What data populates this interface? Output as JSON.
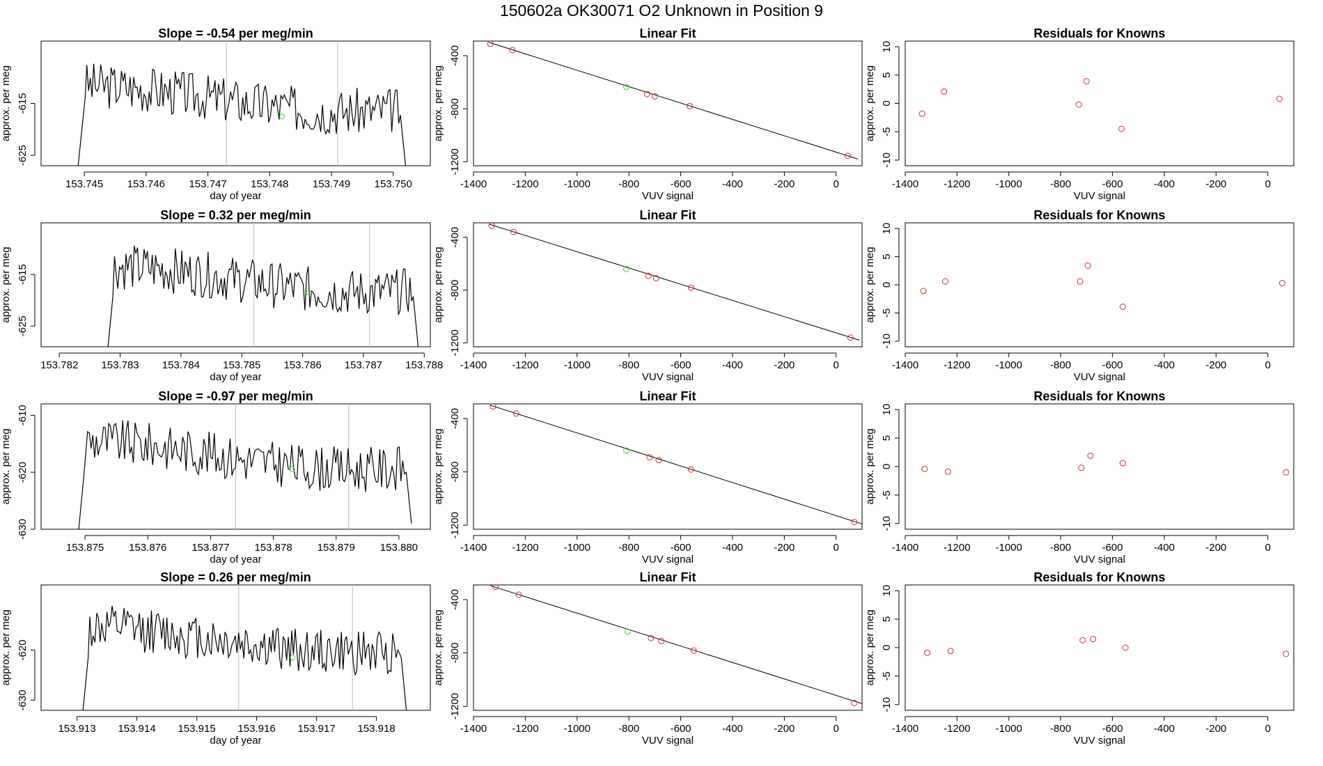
{
  "header": {
    "title": "150602a      OK30071    O2 Unknown in Position  9"
  },
  "colors": {
    "line": "#000000",
    "known_point": "#cd3333",
    "unknown_point": "#33dd33",
    "divider": "#bbbbbb"
  },
  "chart_data": [
    {
      "type": "line",
      "title": "Slope =  -0.54  per meg/min",
      "xlabel": "day of year",
      "ylabel": "approx. per meg",
      "xlim": [
        153.7443,
        153.7506
      ],
      "ylim": [
        -627,
        -603
      ],
      "x_ticks": [
        153.745,
        153.746,
        153.747,
        153.748,
        153.749,
        153.75
      ],
      "x_tick_labels": [
        "153.745",
        "153.746",
        "153.747",
        "153.748",
        "153.749",
        "153.750"
      ],
      "y_ticks": [
        -625,
        -615
      ],
      "y_tick_labels": [
        "-625",
        "-615"
      ],
      "x_start": 153.7449,
      "x_end": 153.7502,
      "n_points": 190,
      "y_mean": -614,
      "y_amplitude": 4.5,
      "y_start": -627,
      "y_end": -627,
      "vlines": [
        153.7473,
        153.7491
      ],
      "marker": {
        "x": 153.7482,
        "y": -617.5
      }
    },
    {
      "type": "scatter",
      "title": "Linear Fit",
      "xlabel": "VUV signal",
      "ylabel": "approx. per meg",
      "xlim": [
        -1400,
        100
      ],
      "ylim": [
        -1230,
        -290
      ],
      "x_ticks": [
        -1400,
        -1200,
        -1000,
        -800,
        -600,
        -400,
        -200,
        0
      ],
      "x_tick_labels": [
        "-1400",
        "-1200",
        "-1000",
        "-800",
        "-600",
        "-400",
        "-200",
        "0"
      ],
      "y_ticks": [
        -400,
        -800,
        -1200
      ],
      "y_tick_labels": [
        "-400",
        "-800",
        "-1200"
      ],
      "fit_line": {
        "x": [
          -1340,
          85
        ],
        "y": [
          -300,
          -1180
        ]
      },
      "known_points": {
        "x": [
          -1335,
          -1250,
          -730,
          -700,
          -565,
          45
        ],
        "y": [
          -310,
          -358,
          -689,
          -707,
          -780,
          -1155
        ]
      },
      "unknown_point": {
        "x": -810,
        "y": -635
      }
    },
    {
      "type": "scatter",
      "title": "Residuals for Knowns",
      "xlabel": "VUV signal",
      "ylabel": "approx. per meg",
      "xlim": [
        -1400,
        100
      ],
      "ylim": [
        -11,
        11
      ],
      "x_ticks": [
        -1400,
        -1200,
        -1000,
        -800,
        -600,
        -400,
        -200,
        0
      ],
      "x_tick_labels": [
        "-1400",
        "-1200",
        "-1000",
        "-800",
        "-600",
        "-400",
        "-200",
        "0"
      ],
      "y_ticks": [
        10,
        5,
        0,
        -5,
        -10
      ],
      "y_tick_labels": [
        "10",
        "5",
        "0",
        "-5",
        "-10"
      ],
      "points": {
        "x": [
          -1335,
          -1250,
          -730,
          -700,
          -565,
          45
        ],
        "y": [
          -1.8,
          2.1,
          -0.2,
          3.9,
          -4.5,
          0.8
        ]
      }
    },
    {
      "type": "line",
      "title": "Slope =  0.32  per meg/min",
      "xlabel": "day of year",
      "ylabel": "approx. per meg",
      "xlim": [
        153.7817,
        153.7881
      ],
      "ylim": [
        -629,
        -605
      ],
      "x_ticks": [
        153.782,
        153.783,
        153.784,
        153.785,
        153.786,
        153.787,
        153.788
      ],
      "x_tick_labels": [
        "153.782",
        "153.783",
        "153.784",
        "153.785",
        "153.786",
        "153.787",
        "153.788"
      ],
      "y_ticks": [
        -625,
        -615
      ],
      "y_tick_labels": [
        "-625",
        "-615"
      ],
      "x_start": 153.7828,
      "x_end": 153.7879,
      "n_points": 190,
      "y_mean": -616,
      "y_amplitude": 4.5,
      "y_start": -629,
      "y_end": -629,
      "vlines": [
        153.7852,
        153.7871
      ],
      "marker": {
        "x": 153.7861,
        "y": -618.5
      }
    },
    {
      "type": "scatter",
      "title": "Linear Fit",
      "xlabel": "VUV signal",
      "ylabel": "approx. per meg",
      "xlim": [
        -1400,
        100
      ],
      "ylim": [
        -1230,
        -290
      ],
      "x_ticks": [
        -1400,
        -1200,
        -1000,
        -800,
        -600,
        -400,
        -200,
        0
      ],
      "x_tick_labels": [
        "-1400",
        "-1200",
        "-1000",
        "-800",
        "-600",
        "-400",
        "-200",
        "0"
      ],
      "y_ticks": [
        -400,
        -800,
        -1200
      ],
      "y_tick_labels": [
        "-400",
        "-800",
        "-1200"
      ],
      "fit_line": {
        "x": [
          -1340,
          90
        ],
        "y": [
          -300,
          -1180
        ]
      },
      "known_points": {
        "x": [
          -1330,
          -1245,
          -725,
          -695,
          -560,
          55
        ],
        "y": [
          -312,
          -360,
          -692,
          -710,
          -782,
          -1160
        ]
      },
      "unknown_point": {
        "x": -810,
        "y": -640
      }
    },
    {
      "type": "scatter",
      "title": "Residuals for Knowns",
      "xlabel": "VUV signal",
      "ylabel": "approx. per meg",
      "xlim": [
        -1400,
        100
      ],
      "ylim": [
        -11,
        11
      ],
      "x_ticks": [
        -1400,
        -1200,
        -1000,
        -800,
        -600,
        -400,
        -200,
        0
      ],
      "x_tick_labels": [
        "-1400",
        "-1200",
        "-1000",
        "-800",
        "-600",
        "-400",
        "-200",
        "0"
      ],
      "y_ticks": [
        10,
        5,
        0,
        -5,
        -10
      ],
      "y_tick_labels": [
        "10",
        "5",
        "0",
        "-5",
        "-10"
      ],
      "points": {
        "x": [
          -1330,
          -1245,
          -725,
          -695,
          -560,
          55
        ],
        "y": [
          -1.1,
          0.6,
          0.6,
          3.4,
          -3.9,
          0.3
        ]
      }
    },
    {
      "type": "line",
      "title": "Slope =  -0.97  per meg/min",
      "xlabel": "day of year",
      "ylabel": "approx. per meg",
      "xlim": [
        153.8743,
        153.8805
      ],
      "ylim": [
        -630,
        -608
      ],
      "x_ticks": [
        153.875,
        153.876,
        153.877,
        153.878,
        153.879,
        153.88
      ],
      "x_tick_labels": [
        "153.875",
        "153.876",
        "153.877",
        "153.878",
        "153.879",
        "153.880"
      ],
      "y_ticks": [
        -610,
        -620,
        -630
      ],
      "y_tick_labels": [
        "-610",
        "-620",
        "-630"
      ],
      "x_start": 153.8749,
      "x_end": 153.8802,
      "n_points": 190,
      "y_mean": -617,
      "y_amplitude": 4,
      "y_start": -630,
      "y_end": -629,
      "vlines": [
        153.8774,
        153.8792
      ],
      "marker": {
        "x": 153.8783,
        "y": -619.5
      }
    },
    {
      "type": "scatter",
      "title": "Linear Fit",
      "xlabel": "VUV signal",
      "ylabel": "approx. per meg",
      "xlim": [
        -1400,
        100
      ],
      "ylim": [
        -1230,
        -290
      ],
      "x_ticks": [
        -1400,
        -1200,
        -1000,
        -800,
        -600,
        -400,
        -200,
        0
      ],
      "x_tick_labels": [
        "-1400",
        "-1200",
        "-1000",
        "-800",
        "-600",
        "-400",
        "-200",
        "0"
      ],
      "y_ticks": [
        -400,
        -800,
        -1200
      ],
      "y_tick_labels": [
        "-400",
        "-800",
        "-1200"
      ],
      "fit_line": {
        "x": [
          -1335,
          100
        ],
        "y": [
          -300,
          -1190
        ]
      },
      "known_points": {
        "x": [
          -1325,
          -1235,
          -720,
          -685,
          -560,
          70
        ],
        "y": [
          -310,
          -362,
          -690,
          -712,
          -782,
          -1175
        ]
      },
      "unknown_point": {
        "x": -810,
        "y": -640
      }
    },
    {
      "type": "scatter",
      "title": "Residuals for Knowns",
      "xlabel": "VUV signal",
      "ylabel": "approx. per meg",
      "xlim": [
        -1400,
        100
      ],
      "ylim": [
        -11,
        11
      ],
      "x_ticks": [
        -1400,
        -1200,
        -1000,
        -800,
        -600,
        -400,
        -200,
        0
      ],
      "x_tick_labels": [
        "-1400",
        "-1200",
        "-1000",
        "-800",
        "-600",
        "-400",
        "-200",
        "0"
      ],
      "y_ticks": [
        10,
        5,
        0,
        -5,
        -10
      ],
      "y_tick_labels": [
        "10",
        "5",
        "0",
        "-5",
        "-10"
      ],
      "points": {
        "x": [
          -1325,
          -1235,
          -720,
          -685,
          -560,
          70
        ],
        "y": [
          -0.4,
          -0.9,
          -0.2,
          1.9,
          0.6,
          -1.0
        ]
      }
    },
    {
      "type": "line",
      "title": "Slope =  0.26  per meg/min",
      "xlabel": "day of year",
      "ylabel": "approx. per meg",
      "xlim": [
        153.9124,
        153.9189
      ],
      "ylim": [
        -632,
        -607
      ],
      "x_ticks": [
        153.913,
        153.914,
        153.915,
        153.916,
        153.917,
        153.918
      ],
      "x_tick_labels": [
        "153.913",
        "153.914",
        "153.915",
        "153.916",
        "153.917",
        "153.918"
      ],
      "y_ticks": [
        -620,
        -630
      ],
      "y_tick_labels": [
        "-620",
        "-630"
      ],
      "x_start": 153.9131,
      "x_end": 153.9185,
      "n_points": 190,
      "y_mean": -618,
      "y_amplitude": 4.5,
      "y_start": -632,
      "y_end": -632,
      "vlines": [
        153.9157,
        153.9176
      ],
      "marker": {
        "x": 153.9166,
        "y": -621.5
      }
    },
    {
      "type": "scatter",
      "title": "Linear Fit",
      "xlabel": "VUV signal",
      "ylabel": "approx. per meg",
      "xlim": [
        -1400,
        100
      ],
      "ylim": [
        -1230,
        -290
      ],
      "x_ticks": [
        -1400,
        -1200,
        -1000,
        -800,
        -600,
        -400,
        -200,
        0
      ],
      "x_tick_labels": [
        "-1400",
        "-1200",
        "-1000",
        "-800",
        "-600",
        "-400",
        "-200",
        "0"
      ],
      "y_ticks": [
        -400,
        -800,
        -1200
      ],
      "y_tick_labels": [
        "-400",
        "-800",
        "-1200"
      ],
      "fit_line": {
        "x": [
          -1335,
          100
        ],
        "y": [
          -295,
          -1180
        ]
      },
      "known_points": {
        "x": [
          -1315,
          -1225,
          -715,
          -675,
          -550,
          70
        ],
        "y": [
          -305,
          -363,
          -688,
          -710,
          -782,
          -1175
        ]
      },
      "unknown_point": {
        "x": -805,
        "y": -640
      }
    },
    {
      "type": "scatter",
      "title": "Residuals for Knowns",
      "xlabel": "VUV signal",
      "ylabel": "approx. per meg",
      "xlim": [
        -1400,
        100
      ],
      "ylim": [
        -11,
        11
      ],
      "x_ticks": [
        -1400,
        -1200,
        -1000,
        -800,
        -600,
        -400,
        -200,
        0
      ],
      "x_tick_labels": [
        "-1400",
        "-1200",
        "-1000",
        "-800",
        "-600",
        "-400",
        "-200",
        "0"
      ],
      "y_ticks": [
        10,
        5,
        0,
        -5,
        -10
      ],
      "y_tick_labels": [
        "10",
        "5",
        "0",
        "-5",
        "-10"
      ],
      "points": {
        "x": [
          -1315,
          -1225,
          -715,
          -675,
          -550,
          70
        ],
        "y": [
          -0.9,
          -0.6,
          1.3,
          1.5,
          0.0,
          -1.1
        ]
      }
    }
  ]
}
